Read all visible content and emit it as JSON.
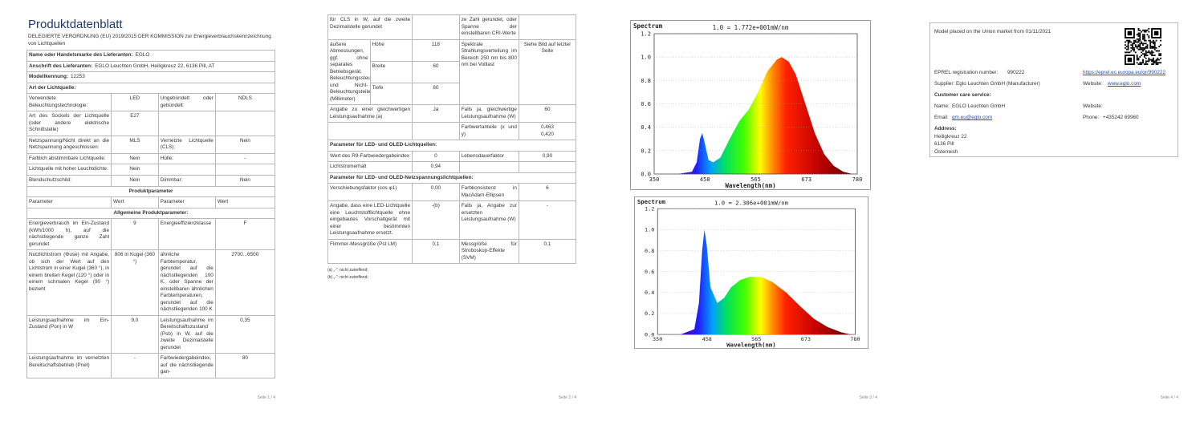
{
  "page1": {
    "title": "Produktdatenblatt",
    "regulation": "DELEGIERTE VERORDNUNG (EU) 2019/2015 DER KOMMISSION zur Energieverbrauchskennzeichnung von Lichtquellen",
    "blocks": [
      {
        "pair": [
          "Name oder Handelsmarke des Lieferanten:",
          "EGLO"
        ]
      },
      {
        "pair": [
          "Anschrift des Lieferanten:",
          "EGLO Leuchten GmbH, Heiligkreuz 22, 6136 Pill, AT"
        ]
      },
      {
        "pair": [
          "Modellkennung:",
          "12253"
        ]
      },
      {
        "heading": "Art der Lichtquelle:"
      },
      {
        "cells": [
          "Verwendete Beleuchtungstechnologie:",
          "LED",
          "Ungebündelt oder gebündelt:",
          "NDLS"
        ]
      },
      {
        "cells": [
          "Art des Sockels der Lichtquelle (oder andere elektrische Schnittstelle)",
          "E27",
          null,
          null
        ]
      },
      {
        "cells": [
          "Netzspannung/Nicht direkt an die Netzspannung angeschlossen:",
          "MLS",
          "Vernetzte Lichtquelle (CLS):",
          "Nein"
        ]
      },
      {
        "cells": [
          "Farblich abstimmbare Lichtquelle:",
          "Nein",
          "Hülle:",
          "-"
        ]
      },
      {
        "cells": [
          "Lichtquelle mit hoher Leuchtdichte:",
          "Nein",
          null,
          null
        ]
      },
      {
        "cells": [
          "Blendschutzschild:",
          "Nein",
          "Dimmbar:",
          "Nein"
        ]
      },
      {
        "title": "Produktparameter"
      },
      {
        "header": [
          "Parameter",
          "Wert",
          "Parameter",
          "Wert"
        ]
      },
      {
        "title": "Allgemeine Produktparameter:"
      },
      {
        "cells": [
          "Energieverbrauch im Ein-Zustand (kWh/1000 h), auf die nächstliegende ganze Zahl gerundet",
          "9",
          "Energieeffizienzklasse",
          "F"
        ]
      },
      {
        "cells": [
          "Nutzlichtstrom (Φuse) mit Angabe, ob sich der Wert auf den Lichtstrom in einer Kugel (360 °), in einem breiten Kegel (120 °) oder in einem schmalen Kegel (90 °) bezieht",
          "806 in Kugel (360 °)",
          "ähnliche Farbtemperatur, gerundet auf die nächstliegenden 100 K, oder Spanne der einstellbaren ähnlichen Farbtemperaturen, gerundet auf die nächstliegenden 100 K",
          "2700...6500"
        ]
      },
      {
        "cells": [
          "Leistungsaufnahme im Ein-Zustand (Pon) in W",
          "9,0",
          "Leistungsaufnahme im Bereitschaftszustand (Psb) in W, auf die zweite Dezimalstelle gerundet",
          "0,35"
        ]
      },
      {
        "cells": [
          "Leistungsaufnahme im vernetzten Bereitschaftsbetrieb (Pnet)",
          "-",
          "Farbwiedergabeindex, auf die nächstliegende gan-",
          "80"
        ]
      }
    ],
    "page_number": "Seite 1 / 4"
  },
  "page2": {
    "blocks": [
      {
        "cells": [
          "für CLS in W, auf die zweite Dezimalstelle gerundet",
          null,
          "ze Zahl gerundet, oder Spanne der einstellbaren CRI-Werte",
          null
        ]
      },
      {
        "dimensions": {
          "label": "äußere Abmessungen, ggf. ohne separates Betriebsgerät, Beleuchtungssteuerungsteile und Nicht-Beleuchtungsteile (Millimeter)",
          "items": [
            [
              "Höhe",
              "118"
            ],
            [
              "Breite",
              "60"
            ],
            [
              "Tiefe",
              "60"
            ]
          ],
          "spectral_label": "Spektrale Strahlungsverteilung im Bereich 250 nm bis 800 nm bei Volllast",
          "spectral_value": "Siehe Bild auf letzter Seite"
        }
      },
      {
        "cells": [
          "Angabe zu einer gleichwertigen Leistungsaufnahme (a)",
          "Ja",
          "Falls ja, gleichwertige Leistungsaufnahme (W)",
          "60"
        ]
      },
      {
        "cells": [
          null,
          null,
          "Farbwertanteile (x und y)",
          [
            "0,463",
            "0,420"
          ]
        ]
      },
      {
        "heading": "Parameter für LED- und OLED-Lichtquellen:"
      },
      {
        "cells": [
          "Wert des R9-Farbwiedergabeindex",
          "0",
          "Lebensdauerfaktor",
          "0,90"
        ]
      },
      {
        "cells": [
          "Lichtstromerhalt",
          "0,94",
          null,
          null
        ]
      },
      {
        "heading": "Parameter für LED- und OLED-Netzspannungslichtquellen:"
      },
      {
        "cells": [
          "Verschiebungsfaktor (cos φ1)",
          "0,00",
          "Farbkonsistenz in MacAdam-Ellipsen",
          "6"
        ]
      },
      {
        "cells": [
          "Angabe, dass eine LED-Lichtquelle eine Leuchtstofflichtquelle ohne eingebautes Vorschaltgerät mit einer bestimmten Leistungsaufnahme ersetzt.",
          "-(b)",
          "Falls ja, Angabe zur ersetzten Leistungsaufnahme (W)",
          "-"
        ]
      },
      {
        "cells": [
          "Flimmer-Messgröße (Pst LM)",
          "0,1",
          "Messgröße für Stroboskop-Effekte (SVM)",
          "0,1"
        ]
      }
    ],
    "notes": [
      "(a) „-“: nicht zutreffend;",
      "(b) „-“: nicht zutreffend;"
    ],
    "page_number": "Seite 2 / 4"
  },
  "page3": {
    "spectra": [
      {
        "header": "Spectrum",
        "scale": "1.0 = 1.772e+001mW/nm",
        "yticks": [
          "1.2",
          "1.0",
          "0.8",
          "0.6",
          "0.4",
          "0.2",
          "0.0"
        ],
        "xticks": [
          "350",
          "458",
          "565",
          "673",
          "780"
        ],
        "xlabel": "Wavelength(nm)"
      },
      {
        "header": "Spectrum",
        "scale": "1.0 = 2.306e+001mW/nm",
        "yticks": [
          "1.2",
          "1.0",
          "0.8",
          "0.6",
          "0.4",
          "0.2",
          "0.0"
        ],
        "xticks": [
          "350",
          "458",
          "565",
          "673",
          "780"
        ],
        "xlabel": "Wavelength(nm)"
      }
    ],
    "page_number": "Seite 3 / 4"
  },
  "page4": {
    "model_line": "Model placed on the Union market from 01/11/2021",
    "eprel_label": "EPREL registration number:",
    "eprel_number": "990222",
    "eprel_url": "https://eprel.ec.europa.eu/qr/990222",
    "supplier_label": "Supplier:",
    "supplier": "Eglo Leuchten GmbH (Manufacturer)",
    "website_label": "Website:",
    "website": "www.eglo.com",
    "customer_care": "Customer care service:",
    "name_label": "Name:",
    "name": "EGLO Leuchten GmbH",
    "care_website_label": "Website:",
    "email_label": "Email:",
    "email": "qm.eu@eglo.com",
    "phone_label": "Phone:",
    "phone": "+435242 69960",
    "address_label": "Address:",
    "address": [
      "Heiligkreuz 22",
      "6136 Pill",
      "Österreich"
    ],
    "page_number": "Seite 4 / 4"
  }
}
